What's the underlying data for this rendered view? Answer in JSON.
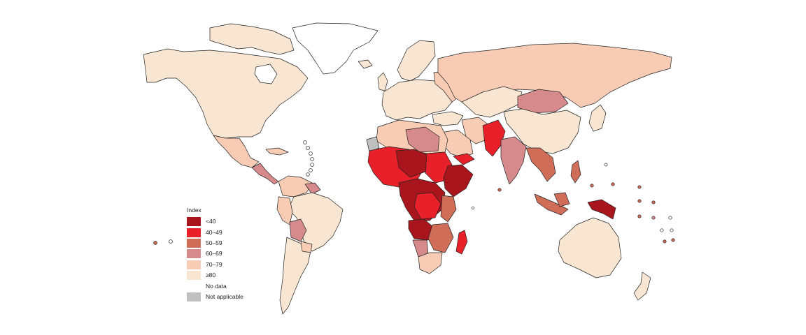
{
  "legend": {
    "title": "Index",
    "items": [
      {
        "label": "<40",
        "color": "#a8151c"
      },
      {
        "label": "40–49",
        "color": "#e8202a"
      },
      {
        "label": "50–59",
        "color": "#cf6d58"
      },
      {
        "label": "60–69",
        "color": "#d68a8c"
      },
      {
        "label": "70–79",
        "color": "#f8cbb4"
      },
      {
        "label": "≥80",
        "color": "#f8e6d3"
      },
      {
        "label": "No data",
        "color": "#ffffff"
      },
      {
        "label": "Not applicable",
        "color": "#c0c0c0"
      }
    ]
  },
  "colors": {
    "lt40": "#a8151c",
    "c40_49": "#e8202a",
    "c50_59": "#cf6d58",
    "c60_69": "#d68a8c",
    "c70_79": "#f8cbb4",
    "gte80": "#f8e6d3",
    "no_data": "#ffffff",
    "not_applicable": "#c0c0c0",
    "border": "#222222"
  }
}
